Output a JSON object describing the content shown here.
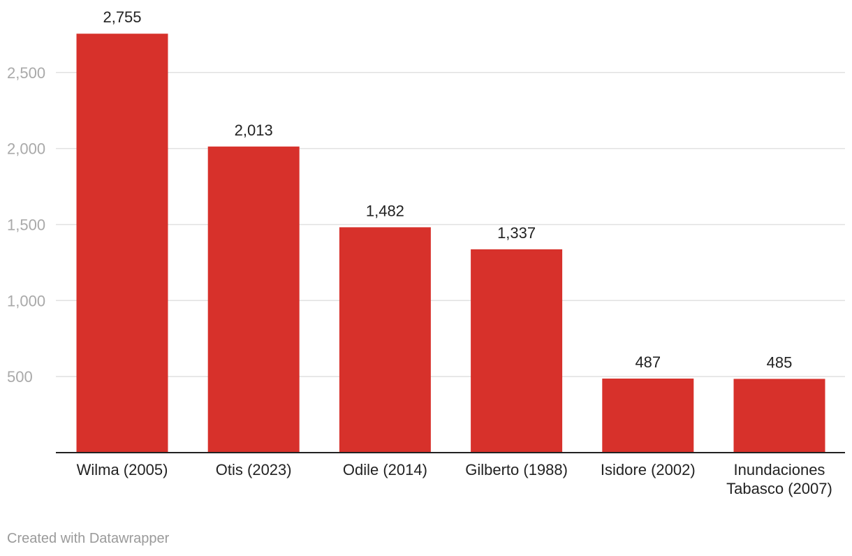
{
  "chart_data": {
    "type": "bar",
    "categories": [
      [
        "Wilma (2005)"
      ],
      [
        "Otis (2023)"
      ],
      [
        "Odile (2014)"
      ],
      [
        "Gilberto (1988)"
      ],
      [
        "Isidore (2002)"
      ],
      [
        "Inundaciones",
        "Tabasco (2007)"
      ]
    ],
    "values": [
      2755,
      2013,
      1482,
      1337,
      487,
      485
    ],
    "value_labels": [
      "2,755",
      "2,013",
      "1,482",
      "1,337",
      "487",
      "485"
    ],
    "yticks": [
      500,
      1000,
      1500,
      2000,
      2500
    ],
    "ytick_labels": [
      "500",
      "1,000",
      "1,500",
      "2,000",
      "2,500"
    ],
    "ylim": [
      0,
      2755
    ],
    "grid": true,
    "bar_color": "#d7312b",
    "title": "",
    "xlabel": "",
    "ylabel": ""
  },
  "footer": {
    "credit": "Created with Datawrapper"
  }
}
